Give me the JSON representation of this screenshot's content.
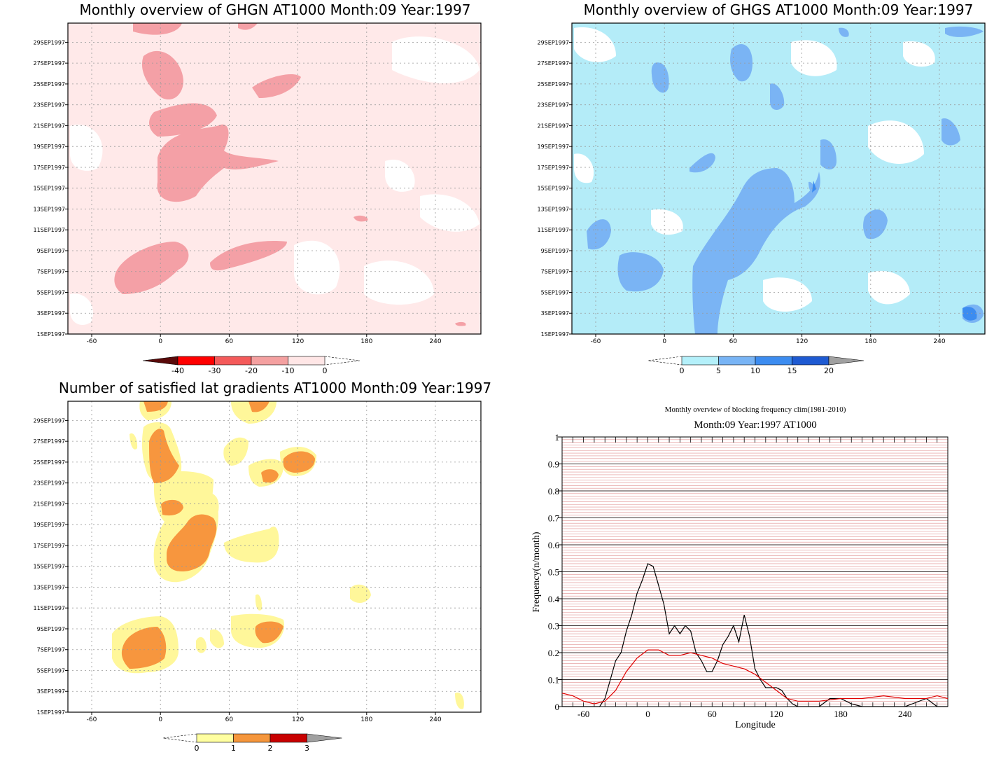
{
  "panels": [
    {
      "title": "Monthly overview of GHGN AT1000 Month:09 Year:1997",
      "x_ticks": [
        -60,
        0,
        60,
        120,
        180,
        240
      ],
      "y_ticks": [
        "1SEP1997",
        "3SEP1997",
        "5SEP1997",
        "7SEP1997",
        "9SEP1997",
        "11SEP1997",
        "13SEP1997",
        "15SEP1997",
        "17SEP1997",
        "19SEP1997",
        "21SEP1997",
        "23SEP1997",
        "25SEP1997",
        "27SEP1997",
        "29SEP1997"
      ],
      "colorbar": {
        "labels": [
          "-40",
          "-30",
          "-20",
          "-10",
          "0"
        ],
        "colors": [
          "#5a0a0a",
          "#ff0000",
          "#f45a5a",
          "#f4a0a0",
          "#ffe6e6"
        ]
      },
      "background": "#ffe9e9",
      "patch_color": "#f4a0a6"
    },
    {
      "title": "Monthly overview of GHGS AT1000 Month:09 Year:1997",
      "x_ticks": [
        -60,
        0,
        60,
        120,
        180,
        240
      ],
      "y_ticks": [
        "1SEP1997",
        "3SEP1997",
        "5SEP1997",
        "7SEP1997",
        "9SEP1997",
        "11SEP1997",
        "13SEP1997",
        "15SEP1997",
        "17SEP1997",
        "19SEP1997",
        "21SEP1997",
        "23SEP1997",
        "25SEP1997",
        "27SEP1997",
        "29SEP1997"
      ],
      "colorbar": {
        "labels": [
          "0",
          "5",
          "10",
          "15",
          "20"
        ],
        "colors": [
          "#b4f0fa",
          "#78b4f5",
          "#3c8cf0",
          "#1e5ad2",
          "#a0a0a0"
        ]
      },
      "background": "#b4ecf8",
      "patch_color": "#7ab4f4"
    },
    {
      "title": "Number of satisfied lat gradients AT1000 Month:09 Year:1997",
      "x_ticks": [
        -60,
        0,
        60,
        120,
        180,
        240
      ],
      "y_ticks": [
        "1SEP1997",
        "3SEP1997",
        "5SEP1997",
        "7SEP1997",
        "9SEP1997",
        "11SEP1997",
        "13SEP1997",
        "15SEP1997",
        "17SEP1997",
        "19SEP1997",
        "21SEP1997",
        "23SEP1997",
        "25SEP1997",
        "27SEP1997",
        "29SEP1997"
      ],
      "colorbar": {
        "labels": [
          "0",
          "1",
          "2",
          "3"
        ],
        "colors": [
          "#ffffa0",
          "#f5963c",
          "#c80000",
          "#a0a0a0"
        ]
      },
      "background": "#ffffff",
      "patch_color": "#fff79a"
    }
  ],
  "chart_data": {
    "type": "line",
    "title": "Monthly overview of blocking frequency clim(1981-2010)",
    "subtitle": "Month:09 Year:1997  AT1000",
    "xlabel": "Longitude",
    "ylabel": "Frequency(n/month)",
    "xlim": [
      -80,
      280
    ],
    "ylim": [
      0,
      1
    ],
    "x_ticks": [
      -60,
      0,
      60,
      120,
      180,
      240
    ],
    "y_ticks": [
      "0",
      "0.1",
      "0.2",
      "0.3",
      "0.4",
      "0.5",
      "0.6",
      "0.7",
      "0.8",
      "0.9",
      "1"
    ],
    "grid": true,
    "series": [
      {
        "color": "#000000",
        "x": [
          -80,
          -45,
          -40,
          -35,
          -30,
          -25,
          -20,
          -15,
          -10,
          -5,
          0,
          5,
          10,
          15,
          20,
          25,
          30,
          35,
          40,
          45,
          50,
          55,
          60,
          65,
          70,
          75,
          80,
          85,
          90,
          95,
          100,
          105,
          110,
          115,
          120,
          125,
          130,
          135,
          140,
          160,
          170,
          180,
          190,
          200,
          240,
          260,
          270,
          280
        ],
        "y": [
          0,
          0,
          0.03,
          0.1,
          0.17,
          0.2,
          0.28,
          0.34,
          0.42,
          0.47,
          0.53,
          0.52,
          0.45,
          0.38,
          0.27,
          0.3,
          0.27,
          0.3,
          0.28,
          0.2,
          0.17,
          0.13,
          0.13,
          0.17,
          0.23,
          0.26,
          0.3,
          0.24,
          0.34,
          0.26,
          0.14,
          0.1,
          0.07,
          0.07,
          0.07,
          0.06,
          0.03,
          0.01,
          0.0,
          0.0,
          0.03,
          0.03,
          0.01,
          0.0,
          0.0,
          0.03,
          0.0,
          0.0
        ]
      },
      {
        "color": "#e00000",
        "x": [
          -80,
          -70,
          -60,
          -50,
          -40,
          -30,
          -20,
          -10,
          0,
          10,
          20,
          30,
          40,
          50,
          60,
          70,
          80,
          90,
          100,
          110,
          120,
          130,
          140,
          160,
          180,
          200,
          220,
          240,
          260,
          270,
          280
        ],
        "y": [
          0.05,
          0.04,
          0.02,
          0.01,
          0.02,
          0.06,
          0.13,
          0.18,
          0.21,
          0.21,
          0.19,
          0.19,
          0.2,
          0.19,
          0.18,
          0.16,
          0.15,
          0.14,
          0.12,
          0.09,
          0.06,
          0.03,
          0.02,
          0.02,
          0.03,
          0.03,
          0.04,
          0.03,
          0.03,
          0.04,
          0.03
        ]
      }
    ]
  }
}
